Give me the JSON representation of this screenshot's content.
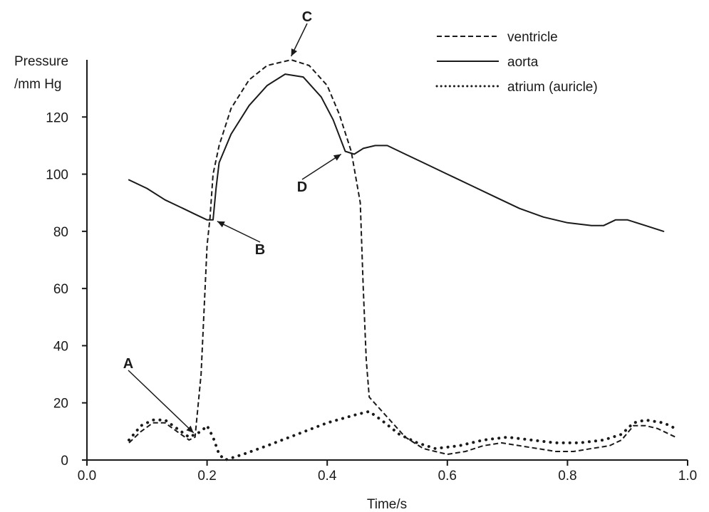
{
  "chart_data": {
    "type": "line",
    "xlabel": "Time/s",
    "ylabel_lines": [
      "Pressure",
      "/mm Hg"
    ],
    "xlim": [
      0.0,
      1.0
    ],
    "ylim": [
      0,
      140
    ],
    "x_ticks": [
      "0.0",
      "0.2",
      "0.4",
      "0.6",
      "0.8",
      "1.0"
    ],
    "y_ticks": [
      "0",
      "20",
      "40",
      "60",
      "80",
      "100",
      "120"
    ],
    "grid": false,
    "legend_position": "top-right",
    "legend": [
      {
        "label": "ventricle",
        "style": "dashed"
      },
      {
        "label": "aorta",
        "style": "solid"
      },
      {
        "label": "atrium (auricle)",
        "style": "dotted"
      }
    ],
    "series": [
      {
        "name": "ventricle",
        "style": "dashed",
        "points": [
          [
            0.07,
            6
          ],
          [
            0.09,
            10
          ],
          [
            0.11,
            13
          ],
          [
            0.13,
            13
          ],
          [
            0.15,
            10
          ],
          [
            0.17,
            7
          ],
          [
            0.18,
            8
          ],
          [
            0.19,
            30
          ],
          [
            0.2,
            75
          ],
          [
            0.205,
            85
          ],
          [
            0.21,
            100
          ],
          [
            0.22,
            110
          ],
          [
            0.24,
            123
          ],
          [
            0.27,
            133
          ],
          [
            0.3,
            138
          ],
          [
            0.34,
            140
          ],
          [
            0.37,
            138
          ],
          [
            0.4,
            131
          ],
          [
            0.42,
            121
          ],
          [
            0.44,
            108
          ],
          [
            0.455,
            90
          ],
          [
            0.46,
            60
          ],
          [
            0.465,
            35
          ],
          [
            0.47,
            22
          ],
          [
            0.5,
            15
          ],
          [
            0.53,
            8
          ],
          [
            0.56,
            4
          ],
          [
            0.58,
            3
          ],
          [
            0.6,
            2
          ],
          [
            0.63,
            3
          ],
          [
            0.66,
            5
          ],
          [
            0.69,
            6
          ],
          [
            0.72,
            5
          ],
          [
            0.75,
            4
          ],
          [
            0.78,
            3
          ],
          [
            0.81,
            3
          ],
          [
            0.84,
            4
          ],
          [
            0.87,
            5
          ],
          [
            0.89,
            7
          ],
          [
            0.91,
            12
          ],
          [
            0.93,
            12
          ],
          [
            0.95,
            11
          ],
          [
            0.98,
            8
          ]
        ]
      },
      {
        "name": "aorta",
        "style": "solid",
        "points": [
          [
            0.07,
            98
          ],
          [
            0.1,
            95
          ],
          [
            0.13,
            91
          ],
          [
            0.16,
            88
          ],
          [
            0.18,
            86
          ],
          [
            0.2,
            84
          ],
          [
            0.21,
            84
          ],
          [
            0.215,
            95
          ],
          [
            0.22,
            104
          ],
          [
            0.24,
            114
          ],
          [
            0.27,
            124
          ],
          [
            0.3,
            131
          ],
          [
            0.33,
            135
          ],
          [
            0.36,
            134
          ],
          [
            0.39,
            127
          ],
          [
            0.41,
            119
          ],
          [
            0.43,
            108
          ],
          [
            0.445,
            107
          ],
          [
            0.46,
            109
          ],
          [
            0.48,
            110
          ],
          [
            0.5,
            110
          ],
          [
            0.53,
            107
          ],
          [
            0.56,
            104
          ],
          [
            0.6,
            100
          ],
          [
            0.64,
            96
          ],
          [
            0.68,
            92
          ],
          [
            0.72,
            88
          ],
          [
            0.76,
            85
          ],
          [
            0.8,
            83
          ],
          [
            0.84,
            82
          ],
          [
            0.86,
            82
          ],
          [
            0.88,
            84
          ],
          [
            0.9,
            84
          ],
          [
            0.93,
            82
          ],
          [
            0.96,
            80
          ]
        ]
      },
      {
        "name": "atrium (auricle)",
        "style": "dotted",
        "points": [
          [
            0.07,
            7
          ],
          [
            0.09,
            12
          ],
          [
            0.11,
            14
          ],
          [
            0.13,
            14
          ],
          [
            0.15,
            11
          ],
          [
            0.17,
            8
          ],
          [
            0.19,
            10
          ],
          [
            0.2,
            12
          ],
          [
            0.21,
            8
          ],
          [
            0.22,
            2
          ],
          [
            0.23,
            0
          ],
          [
            0.26,
            2
          ],
          [
            0.3,
            5
          ],
          [
            0.35,
            9
          ],
          [
            0.4,
            13
          ],
          [
            0.45,
            16
          ],
          [
            0.47,
            17
          ],
          [
            0.49,
            14
          ],
          [
            0.52,
            9
          ],
          [
            0.55,
            6
          ],
          [
            0.58,
            4
          ],
          [
            0.62,
            5
          ],
          [
            0.66,
            7
          ],
          [
            0.7,
            8
          ],
          [
            0.74,
            7
          ],
          [
            0.78,
            6
          ],
          [
            0.82,
            6
          ],
          [
            0.86,
            7
          ],
          [
            0.89,
            9
          ],
          [
            0.91,
            13
          ],
          [
            0.93,
            14
          ],
          [
            0.96,
            13
          ],
          [
            0.98,
            11
          ]
        ]
      }
    ],
    "annotations": [
      {
        "label": "A",
        "x": 0.18,
        "y": 8
      },
      {
        "label": "B",
        "x": 0.205,
        "y": 84
      },
      {
        "label": "C",
        "x": 0.34,
        "y": 139
      },
      {
        "label": "D",
        "x": 0.435,
        "y": 108
      }
    ]
  }
}
